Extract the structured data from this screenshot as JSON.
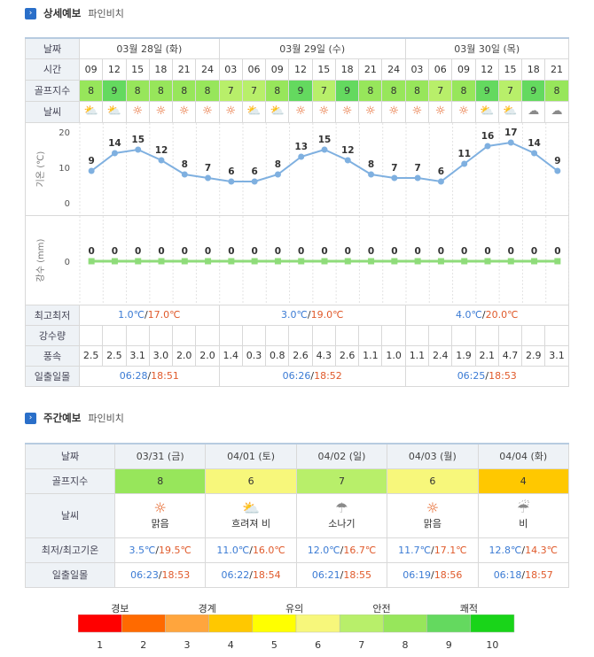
{
  "detail": {
    "title": "상세예보",
    "subtitle": "파인비치"
  },
  "weekly_title": {
    "title": "주간예보",
    "subtitle": "파인비치"
  },
  "labels": {
    "date": "날짜",
    "time": "시간",
    "golf": "골프지수",
    "weather": "날씨",
    "temp_axis": "기온 (℃)",
    "rain_axis": "강수 (mm)",
    "minmax": "최고최저",
    "rain": "강수량",
    "wind": "풍속",
    "sun": "일출일몰",
    "w_date": "날짜",
    "w_golf": "골프지수",
    "w_weather": "날씨",
    "w_minmax": "최저/최고기온",
    "w_sun": "일출일몰"
  },
  "days": [
    {
      "label": "03월 28일 (화)",
      "min": "1.0℃",
      "max": "17.0℃",
      "sunrise": "06:28",
      "sunset": "18:51"
    },
    {
      "label": "03월 29일 (수)",
      "min": "3.0℃",
      "max": "19.0℃",
      "sunrise": "06:26",
      "sunset": "18:52"
    },
    {
      "label": "03월 30일 (목)",
      "min": "4.0℃",
      "max": "20.0℃",
      "sunrise": "06:25",
      "sunset": "18:53"
    }
  ],
  "hours": [
    "09",
    "12",
    "15",
    "18",
    "21",
    "24",
    "03",
    "06",
    "09",
    "12",
    "15",
    "18",
    "21",
    "24",
    "03",
    "06",
    "09",
    "12",
    "15",
    "18",
    "21"
  ],
  "golf": [
    8,
    9,
    8,
    8,
    8,
    8,
    7,
    7,
    8,
    9,
    7,
    9,
    8,
    8,
    8,
    7,
    8,
    9,
    7,
    9,
    8
  ],
  "weather_icons": [
    "partly-cloudy",
    "partly-cloudy",
    "sun",
    "sun",
    "sun",
    "sun",
    "sun",
    "partly-cloudy",
    "partly-cloudy",
    "sun",
    "sun",
    "sun",
    "sun",
    "sun",
    "sun",
    "sun",
    "sun",
    "partly-cloudy",
    "partly-cloudy",
    "cloud",
    "cloud"
  ],
  "wind": [
    "2.5",
    "2.5",
    "3.1",
    "3.0",
    "2.0",
    "2.0",
    "1.4",
    "0.3",
    "0.8",
    "2.6",
    "4.3",
    "2.6",
    "1.1",
    "1.0",
    "1.1",
    "2.4",
    "1.9",
    "2.1",
    "4.7",
    "2.9",
    "3.1"
  ],
  "chart_data": [
    {
      "type": "line",
      "ylabel": "기온 (℃)",
      "ylim": [
        0,
        20
      ],
      "yticks": [
        0,
        10,
        20
      ],
      "x": [
        "09",
        "12",
        "15",
        "18",
        "21",
        "24",
        "03",
        "06",
        "09",
        "12",
        "15",
        "18",
        "21",
        "24",
        "03",
        "06",
        "09",
        "12",
        "15",
        "18",
        "21"
      ],
      "values": [
        9,
        14,
        15,
        12,
        8,
        7,
        6,
        6,
        8,
        13,
        15,
        12,
        8,
        7,
        7,
        6,
        11,
        16,
        17,
        14,
        9
      ],
      "color": "#7fb0e0"
    },
    {
      "type": "line",
      "ylabel": "강수 (mm)",
      "yticks": [
        0
      ],
      "x": [
        "09",
        "12",
        "15",
        "18",
        "21",
        "24",
        "03",
        "06",
        "09",
        "12",
        "15",
        "18",
        "21",
        "24",
        "03",
        "06",
        "09",
        "12",
        "15",
        "18",
        "21"
      ],
      "values": [
        0,
        0,
        0,
        0,
        0,
        0,
        0,
        0,
        0,
        0,
        0,
        0,
        0,
        0,
        0,
        0,
        0,
        0,
        0,
        0,
        0
      ],
      "color": "#8fdc7a"
    }
  ],
  "weekly": [
    {
      "date": "03/31 (금)",
      "golf": "8",
      "cls": "g8",
      "icon": "sun",
      "desc": "맑음",
      "min": "3.5℃",
      "max": "19.5℃",
      "sunrise": "06:23",
      "sunset": "18:53"
    },
    {
      "date": "04/01 (토)",
      "golf": "6",
      "cls": "g6",
      "icon": "cloud-rain",
      "desc": "흐려져 비",
      "min": "11.0℃",
      "max": "16.0℃",
      "sunrise": "06:22",
      "sunset": "18:54"
    },
    {
      "date": "04/02 (일)",
      "golf": "7",
      "cls": "g7",
      "icon": "shower",
      "desc": "소나기",
      "min": "12.0℃",
      "max": "16.7℃",
      "sunrise": "06:21",
      "sunset": "18:55"
    },
    {
      "date": "04/03 (월)",
      "golf": "6",
      "cls": "g6",
      "icon": "sun",
      "desc": "맑음",
      "min": "11.7℃",
      "max": "17.1℃",
      "sunrise": "06:19",
      "sunset": "18:56"
    },
    {
      "date": "04/04 (화)",
      "golf": "4",
      "cls": "g4",
      "icon": "rain",
      "desc": "비",
      "min": "12.8℃",
      "max": "14.3℃",
      "sunrise": "06:18",
      "sunset": "18:57"
    }
  ],
  "legend": {
    "groups": [
      "경보",
      "경계",
      "유의",
      "안전",
      "쾌적"
    ],
    "numbers": [
      "1",
      "2",
      "3",
      "4",
      "5",
      "6",
      "7",
      "8",
      "9",
      "10"
    ],
    "colors": [
      "#ff0000",
      "#ff6a00",
      "#ffa53d",
      "#ffc800",
      "#ffff00",
      "#f7f77b",
      "#b8ef6a",
      "#97e65b",
      "#64d95f",
      "#19d419"
    ]
  }
}
